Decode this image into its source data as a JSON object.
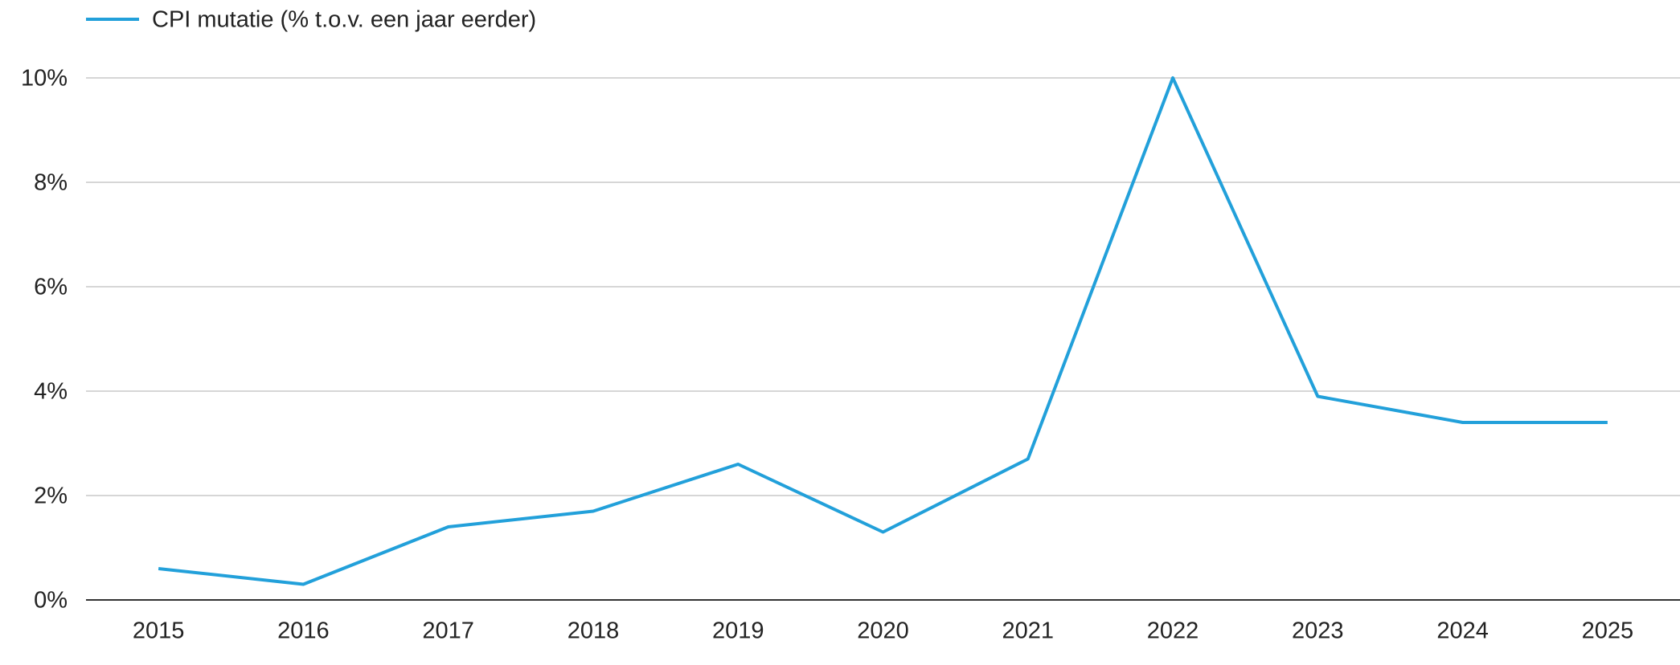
{
  "chart_data": {
    "type": "line",
    "categories": [
      "2015",
      "2016",
      "2017",
      "2018",
      "2019",
      "2020",
      "2021",
      "2022",
      "2023",
      "2024",
      "2025"
    ],
    "series": [
      {
        "name": "CPI mutatie (% t.o.v. een jaar eerder)",
        "color": "#22a0da",
        "values": [
          0.6,
          0.3,
          1.4,
          1.7,
          2.6,
          1.3,
          2.7,
          10.0,
          3.9,
          3.4,
          3.4
        ]
      }
    ],
    "ylim": [
      0,
      10
    ],
    "yticks": [
      {
        "value": 0,
        "label": "0%"
      },
      {
        "value": 2,
        "label": "2%"
      },
      {
        "value": 4,
        "label": "4%"
      },
      {
        "value": 6,
        "label": "6%"
      },
      {
        "value": 8,
        "label": "8%"
      },
      {
        "value": 10,
        "label": "10%"
      }
    ],
    "grid": true,
    "legend": "top"
  }
}
